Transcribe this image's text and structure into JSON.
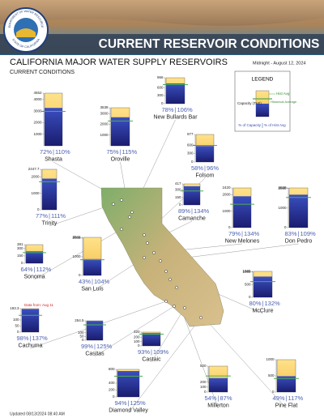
{
  "header": {
    "banner_title": "CURRENT RESERVOIR CONDITIONS",
    "logo_top": "DEPARTMENT OF WATER RESOURCES",
    "logo_bottom": "STATE OF CALIFORNIA"
  },
  "title": "CALIFORNIA MAJOR WATER SUPPLY RESERVOIRS",
  "subtitle": "CURRENT CONDITIONS",
  "date": "Midnight - August 12, 2024",
  "legend": {
    "title": "LEGEND",
    "hist_avg": "Hist Avg",
    "historical_average": "Historical Average",
    "capacity": "Capacity (TAF)",
    "pct_capacity": "% of Capacity",
    "pct_hist_avg": "% of Hist Avg"
  },
  "reservoirs": [
    {
      "name": "Shasta",
      "ylim": [
        0,
        4552
      ],
      "yticks": [
        1000,
        2000,
        3000,
        4000,
        4552
      ],
      "values": [
        72,
        110
      ],
      "value_labels": [
        "72%",
        "110%"
      ]
    },
    {
      "name": "New Bullards Bar",
      "ylim": [
        0,
        966
      ],
      "yticks": [
        0,
        300,
        600,
        966
      ],
      "values": [
        78,
        106
      ],
      "value_labels": [
        "78%",
        "106%"
      ]
    },
    {
      "name": "Oroville",
      "ylim": [
        0,
        3538
      ],
      "yticks": [
        1000,
        2000,
        3000,
        3538
      ],
      "values": [
        75,
        115
      ],
      "value_labels": [
        "75%",
        "115%"
      ]
    },
    {
      "name": "Folsom",
      "ylim": [
        0,
        977
      ],
      "yticks": [
        0,
        300,
        600,
        977
      ],
      "values": [
        58,
        96
      ],
      "value_labels": [
        "58%",
        "96%"
      ]
    },
    {
      "name": "Trinity",
      "ylim": [
        0,
        2447.7
      ],
      "yticks": [
        0,
        1000,
        2000,
        2447.7
      ],
      "values": [
        77,
        111
      ],
      "value_labels": [
        "77%",
        "111%"
      ]
    },
    {
      "name": "Camanche",
      "ylim": [
        0,
        417
      ],
      "yticks": [
        0,
        150,
        300,
        417
      ],
      "values": [
        89,
        134
      ],
      "value_labels": [
        "89%",
        "134%"
      ]
    },
    {
      "name": "New Melones",
      "ylim": [
        0,
        2420
      ],
      "yticks": [
        0,
        1000,
        2000,
        2420
      ],
      "values": [
        79,
        134
      ],
      "value_labels": [
        "79%",
        "134%"
      ]
    },
    {
      "name": "Don Pedro",
      "ylim": [
        0,
        2030
      ],
      "yticks": [
        0,
        1000,
        2000,
        2030
      ],
      "values": [
        83,
        109
      ],
      "value_labels": [
        "83%",
        "109%"
      ]
    },
    {
      "name": "Sonoma",
      "ylim": [
        0,
        381
      ],
      "yticks": [
        0,
        150,
        300,
        381
      ],
      "values": [
        64,
        112
      ],
      "value_labels": [
        "64%",
        "112%"
      ]
    },
    {
      "name": "San Luis",
      "ylim": [
        0,
        2041
      ],
      "yticks": [
        0,
        1000,
        2000,
        2041
      ],
      "values": [
        43,
        104
      ],
      "value_labels": [
        "43%",
        "104%"
      ]
    },
    {
      "name": "McClure",
      "ylim": [
        0,
        1025
      ],
      "yticks": [
        0,
        500,
        1000,
        1025
      ],
      "values": [
        80,
        132
      ],
      "value_labels": [
        "80%",
        "132%"
      ]
    },
    {
      "name": "Cachuma",
      "ylim": [
        0,
        193.3
      ],
      "yticks": [
        0,
        50,
        100,
        193.3
      ],
      "values": [
        98,
        137
      ],
      "value_labels": [
        "98%",
        "137%"
      ],
      "note": "Data from: Aug 11"
    },
    {
      "name": "Casitas",
      "ylim": [
        0,
        254.5
      ],
      "yticks": [
        0,
        50,
        100,
        254.5
      ],
      "values": [
        99,
        125
      ],
      "value_labels": [
        "99%",
        "125%"
      ]
    },
    {
      "name": "Castaic",
      "ylim": [
        0,
        320
      ],
      "yticks": [
        0,
        100,
        200,
        320
      ],
      "values": [
        93,
        109
      ],
      "value_labels": [
        "93%",
        "109%"
      ]
    },
    {
      "name": "Diamond Valley",
      "ylim": [
        0,
        800
      ],
      "yticks": [
        0,
        200,
        400,
        800
      ],
      "values": [
        94,
        125
      ],
      "value_labels": [
        "94%",
        "125%"
      ]
    },
    {
      "name": "Millerton",
      "ylim": [
        0,
        520
      ],
      "yticks": [
        0,
        100,
        200,
        520
      ],
      "values": [
        54,
        87
      ],
      "value_labels": [
        "54%",
        "87%"
      ]
    },
    {
      "name": "Pine Flat",
      "ylim": [
        0,
        1000
      ],
      "yticks": [
        0,
        500,
        1000
      ],
      "values": [
        49,
        117
      ],
      "value_labels": [
        "49%",
        "117%"
      ]
    }
  ],
  "updated": "Updated 08/13/2024 08:40 AM"
}
